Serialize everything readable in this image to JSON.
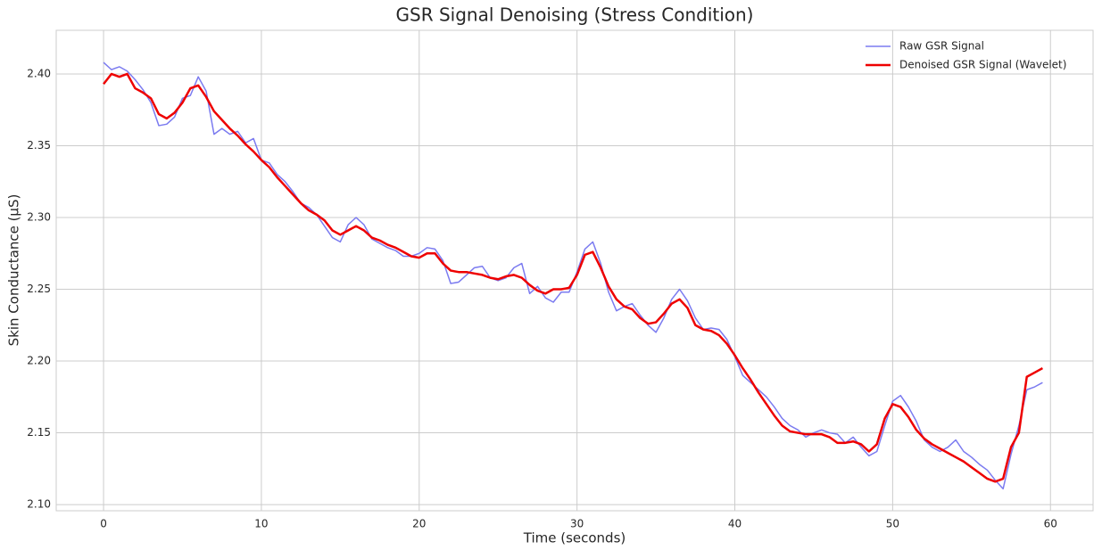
{
  "chart_data": {
    "type": "line",
    "title": "GSR Signal Denoising (Stress Condition)",
    "xlabel": "Time (seconds)",
    "ylabel": "Skin Conductance (µS)",
    "x": [
      0,
      0.5,
      1,
      1.5,
      2,
      2.5,
      3,
      3.5,
      4,
      4.5,
      5,
      5.5,
      6,
      6.5,
      7,
      7.5,
      8,
      8.5,
      9,
      9.5,
      10,
      10.5,
      11,
      11.5,
      12,
      12.5,
      13,
      13.5,
      14,
      14.5,
      15,
      15.5,
      16,
      16.5,
      17,
      17.5,
      18,
      18.5,
      19,
      19.5,
      20,
      20.5,
      21,
      21.5,
      22,
      22.5,
      23,
      23.5,
      24,
      24.5,
      25,
      25.5,
      26,
      26.5,
      27,
      27.5,
      28,
      28.5,
      29,
      29.5,
      30,
      30.5,
      31,
      31.5,
      32,
      32.5,
      33,
      33.5,
      34,
      34.5,
      35,
      35.5,
      36,
      36.5,
      37,
      37.5,
      38,
      38.5,
      39,
      39.5,
      40,
      40.5,
      41,
      41.5,
      42,
      42.5,
      43,
      43.5,
      44,
      44.5,
      45,
      45.5,
      46,
      46.5,
      47,
      47.5,
      48,
      48.5,
      49,
      49.5,
      50,
      50.5,
      51,
      51.5,
      52,
      52.5,
      53,
      53.5,
      54,
      54.5,
      55,
      55.5,
      56,
      56.5,
      57,
      57.5,
      58,
      58.5,
      59,
      59.5
    ],
    "series": [
      {
        "name": "Raw GSR Signal",
        "color": "#7b7bf0",
        "width": 1.5,
        "values": [
          2.408,
          2.403,
          2.405,
          2.402,
          2.396,
          2.389,
          2.38,
          2.364,
          2.365,
          2.37,
          2.383,
          2.385,
          2.398,
          2.388,
          2.358,
          2.362,
          2.358,
          2.36,
          2.352,
          2.355,
          2.34,
          2.338,
          2.33,
          2.325,
          2.318,
          2.31,
          2.307,
          2.302,
          2.294,
          2.286,
          2.283,
          2.295,
          2.3,
          2.295,
          2.285,
          2.282,
          2.279,
          2.277,
          2.273,
          2.273,
          2.275,
          2.279,
          2.278,
          2.27,
          2.254,
          2.255,
          2.26,
          2.265,
          2.266,
          2.258,
          2.256,
          2.258,
          2.265,
          2.268,
          2.247,
          2.252,
          2.244,
          2.241,
          2.248,
          2.248,
          2.262,
          2.278,
          2.283,
          2.268,
          2.248,
          2.235,
          2.238,
          2.24,
          2.232,
          2.225,
          2.22,
          2.23,
          2.243,
          2.25,
          2.242,
          2.23,
          2.222,
          2.223,
          2.222,
          2.215,
          2.203,
          2.19,
          2.185,
          2.18,
          2.175,
          2.168,
          2.16,
          2.155,
          2.152,
          2.147,
          2.15,
          2.152,
          2.15,
          2.149,
          2.143,
          2.147,
          2.14,
          2.134,
          2.137,
          2.155,
          2.172,
          2.176,
          2.168,
          2.158,
          2.145,
          2.14,
          2.137,
          2.14,
          2.145,
          2.137,
          2.133,
          2.128,
          2.124,
          2.117,
          2.111,
          2.135,
          2.155,
          2.18,
          2.182,
          2.185
        ]
      },
      {
        "name": "Denoised GSR Signal (Wavelet)",
        "color": "#ee0000",
        "width": 2.5,
        "values": [
          2.393,
          2.4,
          2.398,
          2.4,
          2.39,
          2.387,
          2.383,
          2.372,
          2.369,
          2.373,
          2.38,
          2.39,
          2.392,
          2.384,
          2.374,
          2.368,
          2.362,
          2.357,
          2.351,
          2.346,
          2.34,
          2.335,
          2.328,
          2.322,
          2.316,
          2.31,
          2.305,
          2.302,
          2.298,
          2.291,
          2.288,
          2.291,
          2.294,
          2.291,
          2.286,
          2.284,
          2.281,
          2.279,
          2.276,
          2.273,
          2.272,
          2.275,
          2.275,
          2.268,
          2.263,
          2.262,
          2.262,
          2.261,
          2.26,
          2.258,
          2.257,
          2.259,
          2.26,
          2.258,
          2.253,
          2.249,
          2.247,
          2.25,
          2.25,
          2.251,
          2.26,
          2.274,
          2.276,
          2.265,
          2.252,
          2.243,
          2.238,
          2.236,
          2.23,
          2.226,
          2.227,
          2.233,
          2.24,
          2.243,
          2.237,
          2.225,
          2.222,
          2.221,
          2.218,
          2.212,
          2.204,
          2.195,
          2.187,
          2.178,
          2.17,
          2.162,
          2.155,
          2.151,
          2.15,
          2.149,
          2.149,
          2.149,
          2.147,
          2.143,
          2.143,
          2.144,
          2.142,
          2.137,
          2.142,
          2.16,
          2.17,
          2.168,
          2.161,
          2.152,
          2.146,
          2.142,
          2.139,
          2.136,
          2.133,
          2.13,
          2.126,
          2.122,
          2.118,
          2.116,
          2.118,
          2.14,
          2.15,
          2.189,
          2.192,
          2.195
        ]
      }
    ],
    "xlim": [
      -3,
      62.7
    ],
    "ylim": [
      2.0957,
      2.4304
    ],
    "xticks": [
      0,
      10,
      20,
      30,
      40,
      50,
      60
    ],
    "yticks": [
      {
        "value": 2.1,
        "label": "2.10"
      },
      2.15,
      {
        "value": 2.2,
        "label": "2.20"
      },
      2.25,
      {
        "value": 2.3,
        "label": "2.30"
      },
      2.35,
      {
        "value": 2.4,
        "label": "2.40"
      }
    ],
    "grid": true,
    "legend": "upper right"
  }
}
